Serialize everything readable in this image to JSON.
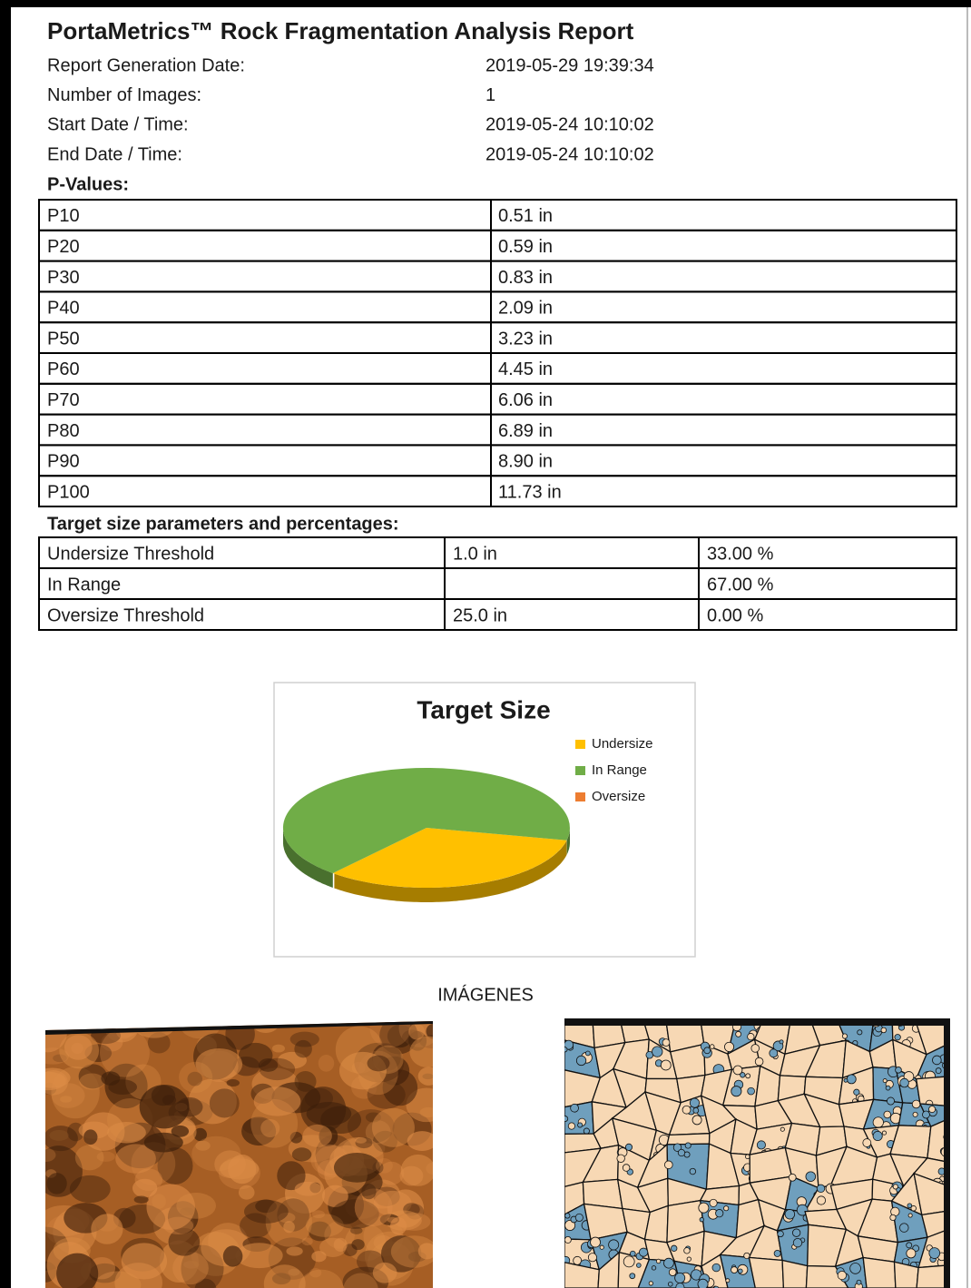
{
  "header": {
    "title": "PortaMetrics™ Rock Fragmentation Analysis Report"
  },
  "info": [
    {
      "label": "Report Generation Date:",
      "value": "2019-05-29 19:39:34"
    },
    {
      "label": "Number of Images:",
      "value": "1"
    },
    {
      "label": "Start Date / Time:",
      "value": "2019-05-24 10:10:02"
    },
    {
      "label": "End Date / Time:",
      "value": "2019-05-24 10:10:02"
    }
  ],
  "p_values": {
    "title": "P-Values:",
    "rows": [
      [
        "P10",
        "0.51 in"
      ],
      [
        "P20",
        "0.59 in"
      ],
      [
        "P30",
        "0.83 in"
      ],
      [
        "P40",
        "2.09 in"
      ],
      [
        "P50",
        "3.23 in"
      ],
      [
        "P60",
        "4.45 in"
      ],
      [
        "P70",
        "6.06 in"
      ],
      [
        "P80",
        "6.89 in"
      ],
      [
        "P90",
        "8.90 in"
      ],
      [
        "P100",
        "11.73 in"
      ]
    ]
  },
  "target": {
    "title": "Target size parameters and percentages:",
    "rows": [
      [
        "Undersize Threshold",
        "1.0 in",
        "33.00 %"
      ],
      [
        "In Range",
        null,
        "67.00 %"
      ],
      [
        "Oversize Threshold",
        "25.0 in",
        "0.00 %"
      ]
    ]
  },
  "chart_data": {
    "type": "pie",
    "title": "Target Size",
    "categories": [
      "Undersize",
      "In Range",
      "Oversize"
    ],
    "values": [
      33,
      67,
      0
    ],
    "colors": [
      "#ffc000",
      "#70ad47",
      "#ed7d31"
    ]
  },
  "images": {
    "title": "IMÁGENES"
  }
}
